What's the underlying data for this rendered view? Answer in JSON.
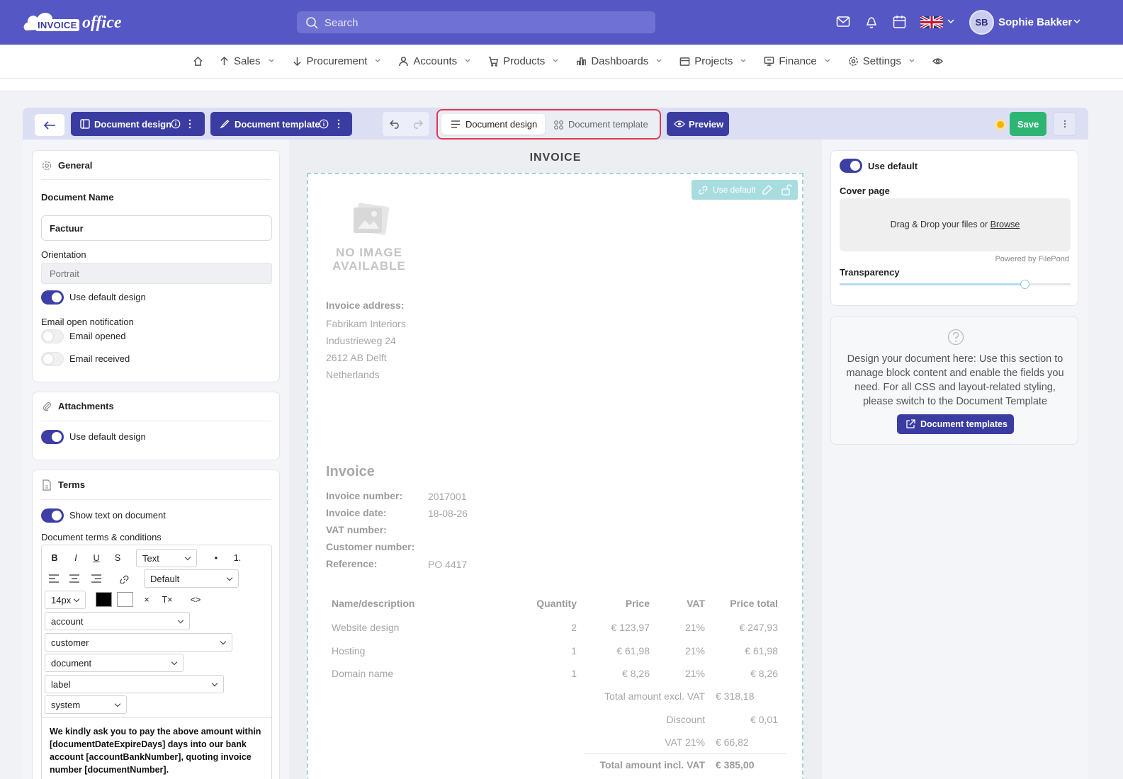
{
  "header": {
    "logo_main": "INVOICE",
    "logo_script": "office",
    "search": "Search",
    "user_initials": "SB",
    "user_name": "Sophie Bakker"
  },
  "nav": {
    "items": [
      "Sales",
      "Procurement",
      "Accounts",
      "Products",
      "Dashboards",
      "Projects",
      "Finance",
      "Settings"
    ]
  },
  "toolbar": {
    "design_button": "Document design",
    "template_button": "Document template",
    "tabs": [
      "Document design",
      "Document template"
    ],
    "preview": "Preview",
    "save": "Save"
  },
  "left_panel": {
    "general": {
      "title": "General",
      "document_name_label": "Document Name",
      "document_name": "Factuur",
      "orientation_label": "Orientation",
      "orientation": "Portrait",
      "use_default_design": "Use default design",
      "email_notification_label": "Email open notification",
      "email_opened": "Email opened",
      "email_received": "Email received"
    },
    "attachments": {
      "title": "Attachments",
      "use_default_design": "Use default design"
    },
    "terms": {
      "title": "Terms",
      "show_text": "Show text on document",
      "conditions_label": "Document terms & conditions",
      "editor": {
        "bold": "B",
        "italic": "I",
        "underline": "U",
        "strike": "S",
        "format": "Text",
        "bullet": "•",
        "numbered": "1.",
        "font": "Default",
        "size": "14px",
        "clear": "×",
        "clear_format": "T×",
        "code": "<>",
        "fields": [
          "account",
          "customer",
          "document",
          "label",
          "system"
        ]
      },
      "text": "We kindly ask you to pay the above amount within [documentDateExpireDays] days into our bank account [accountBankNumber], quoting invoice number [documentNumber]."
    }
  },
  "document": {
    "title": "INVOICE",
    "use_default": "Use default",
    "no_image": "NO IMAGE AVAILABLE",
    "address_label": "Invoice address:",
    "address_lines": [
      "Fabrikam Interiors",
      "Industrieweg 24",
      "2612 AB Delft",
      "Netherlands"
    ],
    "heading": "Invoice",
    "fields": [
      {
        "label": "Invoice number:",
        "value": "2017001"
      },
      {
        "label": "Invoice date:",
        "value": "18-08-26"
      },
      {
        "label": "VAT number:"
      },
      {
        "label": "Customer number:"
      },
      {
        "label": "Reference:",
        "value": "PO 4417"
      }
    ],
    "table": {
      "headers": [
        "Name/description",
        "Quantity",
        "Price",
        "VAT",
        "Price total"
      ],
      "rows": [
        [
          "Website design",
          "2",
          "€ 123,97",
          "21%",
          "€ 247,93"
        ],
        [
          "Hosting",
          "1",
          "€ 61,98",
          "21%",
          "€ 61,98"
        ],
        [
          "Domain name",
          "1",
          "€ 8,26",
          "21%",
          "€ 8,26"
        ]
      ]
    },
    "totals": [
      {
        "label": "Total amount excl. VAT",
        "value": "€ 318,18"
      },
      {
        "label": "Discount",
        "value": "€ 0,01"
      },
      {
        "label": "VAT 21%",
        "value": "€ 66,82"
      },
      {
        "label": "Total amount incl. VAT",
        "value": "€ 385,00"
      }
    ]
  },
  "right_panel": {
    "use_default": "Use default",
    "cover_page_label": "Cover page",
    "dropzone_text": "Drag & Drop your files or",
    "browse": "Browse",
    "powered_by": "Powered by FilePond",
    "transparency_label": "Transparency",
    "help_text": "Design your document here: Use this section to manage block content and enable the fields you need. For all CSS and layout-related styling, please switch to the Document Template",
    "templates_button": "Document templates"
  }
}
